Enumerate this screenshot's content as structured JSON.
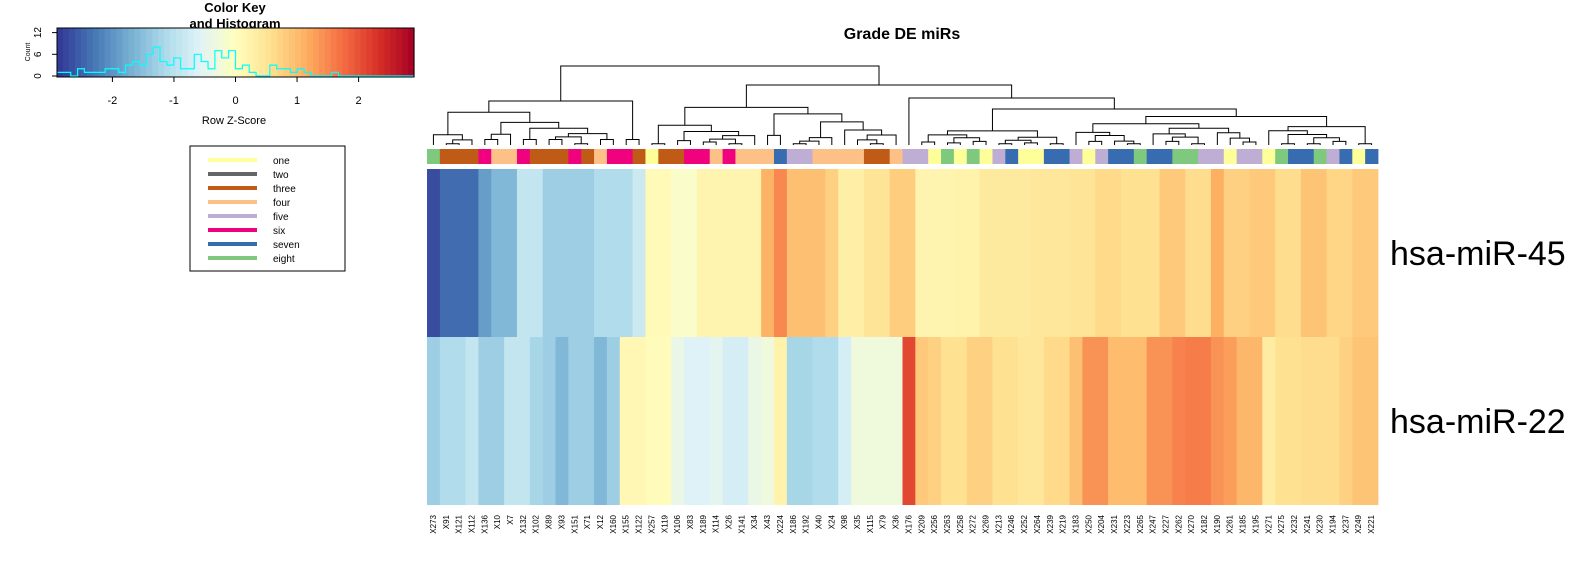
{
  "chart_data": {
    "type": "heatmap",
    "title": "Grade DE miRs",
    "rows": [
      "hsa-miR-45",
      "hsa-miR-22"
    ],
    "columns": [
      "X273",
      "X91",
      "X121",
      "X112",
      "X136",
      "X10",
      "X7",
      "X132",
      "X102",
      "X89",
      "X93",
      "X151",
      "X71",
      "X12",
      "X160",
      "X155",
      "X122",
      "X257",
      "X119",
      "X106",
      "X83",
      "X189",
      "X114",
      "X26",
      "X141",
      "X34",
      "X43",
      "X224",
      "X186",
      "X192",
      "X40",
      "X24",
      "X98",
      "X35",
      "X115",
      "X79",
      "X36",
      "X176",
      "X209",
      "X256",
      "X263",
      "X258",
      "X272",
      "X269",
      "X213",
      "X246",
      "X252",
      "X264",
      "X239",
      "X219",
      "X183",
      "X250",
      "X204",
      "X231",
      "X223",
      "X265",
      "X247",
      "X227",
      "X262",
      "X270",
      "X182",
      "X190",
      "X261",
      "X185",
      "X195",
      "X271",
      "X275",
      "X232",
      "X241",
      "X230",
      "X194",
      "X237",
      "X249",
      "X221"
    ],
    "values": [
      [
        -2.7,
        -2.4,
        -2.4,
        -2.4,
        -1.9,
        -1.6,
        -1.6,
        -0.9,
        -0.9,
        -1.3,
        -1.3,
        -1.3,
        -1.3,
        -1.1,
        -1.1,
        -1.1,
        -0.8,
        0.1,
        0.1,
        -0.1,
        -0.1,
        0.2,
        0.2,
        0.2,
        0.2,
        0.2,
        1.1,
        1.5,
        0.95,
        0.95,
        0.95,
        0.75,
        0.3,
        0.3,
        0.5,
        0.5,
        0.8,
        0.8,
        0.2,
        0.2,
        0.2,
        0.25,
        0.25,
        0.4,
        0.4,
        0.4,
        0.4,
        0.45,
        0.45,
        0.45,
        0.5,
        0.5,
        0.65,
        0.65,
        0.55,
        0.55,
        0.55,
        0.85,
        0.85,
        0.6,
        0.6,
        1.15,
        0.75,
        0.75,
        0.85,
        0.85,
        0.6,
        0.6,
        0.9,
        0.9,
        0.7,
        0.7,
        0.85,
        0.85
      ],
      [
        -1.3,
        -1.1,
        -1.1,
        -0.9,
        -1.3,
        -1.3,
        -0.9,
        -0.9,
        -1.2,
        -1.3,
        -1.6,
        -1.3,
        -1.3,
        -1.6,
        -1.3,
        0.15,
        0.15,
        0.05,
        0.05,
        -0.4,
        -0.6,
        -0.6,
        -0.5,
        -0.7,
        -0.7,
        -0.4,
        -0.3,
        0.25,
        -1.2,
        -1.2,
        -1.1,
        -1.1,
        -0.7,
        -0.3,
        -0.3,
        -0.3,
        -0.3,
        2.1,
        0.85,
        0.75,
        0.55,
        0.55,
        0.75,
        0.75,
        0.55,
        0.55,
        0.45,
        0.45,
        0.65,
        0.65,
        0.95,
        1.4,
        1.4,
        1.0,
        1.0,
        1.0,
        1.4,
        1.4,
        1.55,
        1.6,
        1.6,
        1.4,
        1.3,
        1.05,
        1.05,
        0.35,
        0.55,
        0.55,
        0.6,
        0.6,
        0.6,
        0.75,
        0.9,
        0.9
      ]
    ],
    "grade_colors": [
      "eight",
      "three",
      "three",
      "three",
      "six",
      "four",
      "four",
      "six",
      "three",
      "three",
      "three",
      "six",
      "three",
      "four",
      "six",
      "six",
      "three",
      "one",
      "three",
      "three",
      "six",
      "six",
      "four",
      "six",
      "four",
      "four",
      "four",
      "seven",
      "five",
      "five",
      "four",
      "four",
      "four",
      "four",
      "three",
      "three",
      "four",
      "five",
      "five",
      "one",
      "eight",
      "one",
      "eight",
      "one",
      "five",
      "seven",
      "one",
      "one",
      "seven",
      "seven",
      "five",
      "one",
      "five",
      "seven",
      "seven",
      "eight",
      "seven",
      "seven",
      "eight",
      "eight",
      "five",
      "five",
      "one",
      "five",
      "five",
      "one",
      "eight",
      "seven",
      "seven",
      "eight",
      "five",
      "seven",
      "one",
      "seven"
    ],
    "color_key": {
      "title_line1": "Color Key",
      "title_line2": "and Histogram",
      "ylabel": "Count",
      "xlabel": "Row Z-Score",
      "x_ticks": [
        "-2",
        "-1",
        "0",
        "1",
        "2"
      ],
      "y_ticks": [
        "0",
        "6",
        "12"
      ],
      "xlim": [
        -2.9,
        2.9
      ],
      "ylim": [
        0,
        13
      ],
      "histogram_counts": [
        1,
        1,
        0,
        2,
        1,
        1,
        1,
        2,
        2,
        1,
        3,
        4,
        3,
        6,
        8,
        4,
        3,
        5,
        2,
        2,
        6,
        4,
        2,
        7,
        5,
        7,
        2,
        3,
        1,
        0,
        0,
        3,
        2,
        2,
        1,
        2,
        1,
        0,
        0,
        0,
        1,
        0,
        0,
        0,
        0,
        0,
        0,
        0,
        0,
        0,
        0,
        0
      ]
    },
    "legend": {
      "entries": [
        {
          "label": "one",
          "color": "#ffff99"
        },
        {
          "label": "two",
          "color": "#666666"
        },
        {
          "label": "three",
          "color": "#bf5b17"
        },
        {
          "label": "four",
          "color": "#fdc086"
        },
        {
          "label": "five",
          "color": "#beaed4"
        },
        {
          "label": "six",
          "color": "#f0027f"
        },
        {
          "label": "seven",
          "color": "#386cb0"
        },
        {
          "label": "eight",
          "color": "#7fc97f"
        }
      ]
    },
    "palette": [
      "#313695",
      "#4575b4",
      "#74add1",
      "#abd9e9",
      "#e0f3f8",
      "#ffffbf",
      "#fee090",
      "#fdae61",
      "#f46d43",
      "#d73027",
      "#a50026"
    ],
    "histogram_color": "#00ffff"
  }
}
